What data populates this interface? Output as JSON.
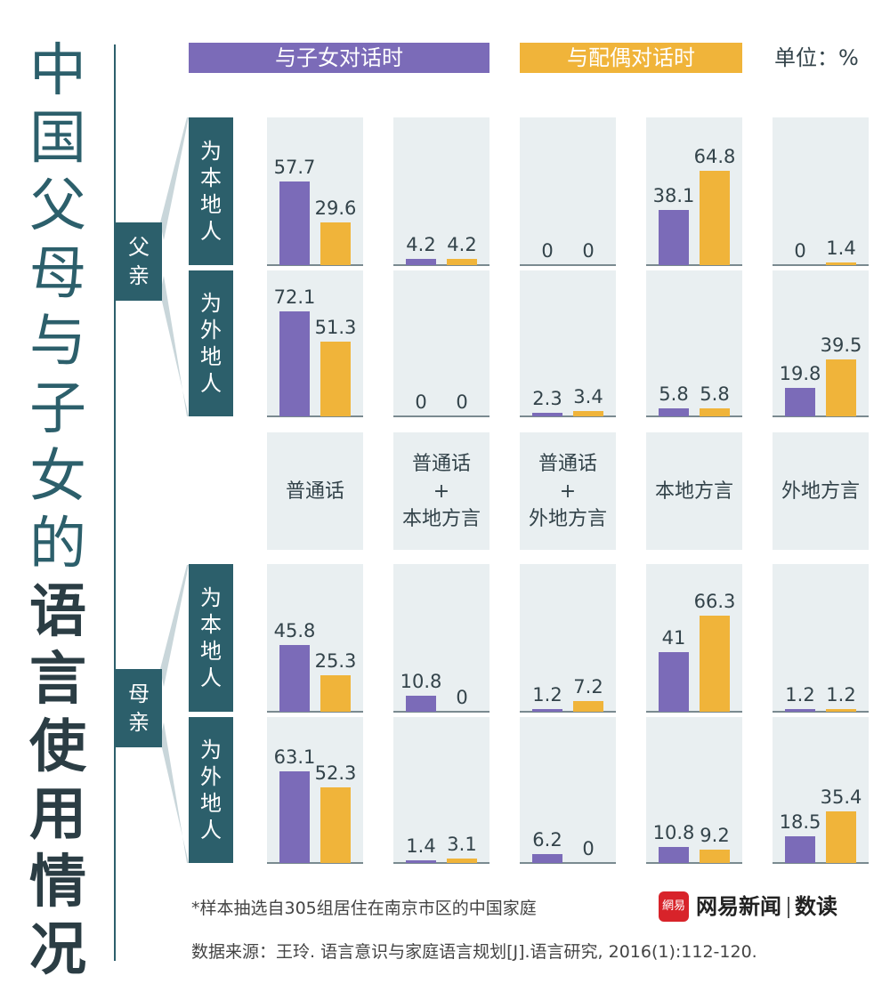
{
  "title_chars": [
    "中",
    "国",
    "父",
    "母",
    "与",
    "子",
    "女",
    "的",
    "语",
    "言",
    "使",
    "用",
    "情",
    "况"
  ],
  "title_bold_from": 8,
  "legend": [
    {
      "label": "与子女对话时",
      "color": "#7b6bb8"
    },
    {
      "label": "与配偶对话时",
      "color": "#f0b43a"
    }
  ],
  "unit_label": "单位：%",
  "colors": {
    "series1": "#7b6bb8",
    "series2": "#f0b43a",
    "panel": "#e9eff1",
    "label_bg": "#2c5f6b"
  },
  "parents": [
    "父亲",
    "母亲"
  ],
  "origins": [
    "为本地人",
    "为外地人"
  ],
  "categories": [
    "普通话",
    "普通话\n+\n本地方言",
    "普通话\n+\n外地方言",
    "本地方言",
    "外地方言"
  ],
  "chart_data": {
    "type": "bar",
    "unit": "%",
    "categories": [
      "普通话",
      "普通话+本地方言",
      "普通话+外地方言",
      "本地方言",
      "外地方言"
    ],
    "series_names": [
      "与子女对话时",
      "与配偶对话时"
    ],
    "groups": [
      {
        "parent": "父亲",
        "origin": "为本地人",
        "series": [
          {
            "name": "与子女对话时",
            "values": [
              57.7,
              4.2,
              0,
              38.1,
              0
            ]
          },
          {
            "name": "与配偶对话时",
            "values": [
              29.6,
              4.2,
              0,
              64.8,
              1.4
            ]
          }
        ]
      },
      {
        "parent": "父亲",
        "origin": "为外地人",
        "series": [
          {
            "name": "与子女对话时",
            "values": [
              72.1,
              0,
              2.3,
              5.8,
              19.8
            ]
          },
          {
            "name": "与配偶对话时",
            "values": [
              51.3,
              0,
              3.4,
              5.8,
              39.5
            ]
          }
        ]
      },
      {
        "parent": "母亲",
        "origin": "为本地人",
        "series": [
          {
            "name": "与子女对话时",
            "values": [
              45.8,
              10.8,
              1.2,
              41,
              1.2
            ]
          },
          {
            "name": "与配偶对话时",
            "values": [
              25.3,
              0,
              7.2,
              66.3,
              1.2
            ]
          }
        ]
      },
      {
        "parent": "母亲",
        "origin": "为外地人",
        "series": [
          {
            "name": "与子女对话时",
            "values": [
              63.1,
              1.4,
              6.2,
              10.8,
              18.5
            ]
          },
          {
            "name": "与配偶对话时",
            "values": [
              52.3,
              3.1,
              0,
              9.2,
              35.4
            ]
          }
        ]
      }
    ],
    "ylim": [
      0,
      100
    ]
  },
  "note": "*样本抽选自305组居住在南京市区的中国家庭",
  "brand": {
    "logo": "網易",
    "name": "网易新闻",
    "sub": "数读"
  },
  "source": "数据来源：王玲. 语言意识与家庭语言规划[J].语言研究, 2016(1):112-120."
}
